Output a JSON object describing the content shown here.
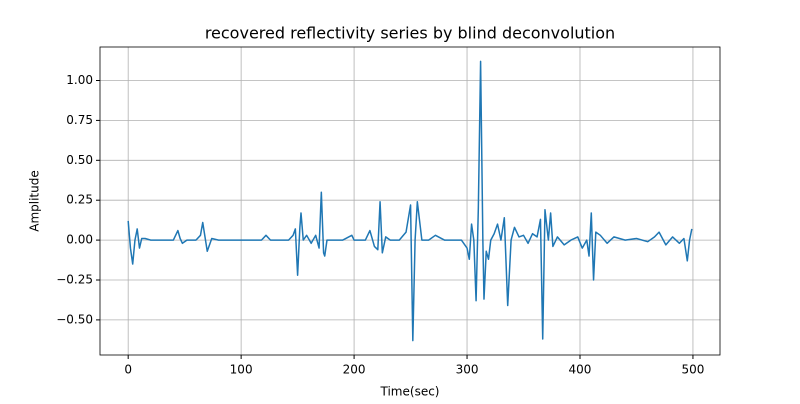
{
  "chart_data": {
    "type": "line",
    "title": "recovered reflectivity series by blind deconvolution",
    "xlabel": "Time(sec)",
    "ylabel": "Amplitude",
    "x": [
      0,
      2,
      4,
      6,
      8,
      10,
      12,
      15,
      20,
      30,
      40,
      44,
      46,
      48,
      52,
      60,
      64,
      66,
      68,
      70,
      74,
      80,
      100,
      118,
      122,
      126,
      135,
      142,
      146,
      148,
      150,
      152,
      153,
      155,
      158,
      162,
      166,
      169,
      171,
      173,
      174,
      176,
      180,
      190,
      198,
      200,
      204,
      210,
      214,
      218,
      221,
      223,
      225,
      228,
      232,
      240,
      246,
      250,
      252,
      254,
      256,
      260,
      266,
      272,
      280,
      290,
      295,
      300,
      302,
      304,
      306,
      308,
      310,
      312,
      314,
      315,
      317,
      319,
      321,
      324,
      327,
      330,
      333,
      336,
      339,
      342,
      346,
      350,
      354,
      358,
      362,
      365,
      367,
      369,
      372,
      374,
      376,
      380,
      386,
      392,
      398,
      402,
      406,
      408,
      410,
      412,
      414,
      418,
      424,
      430,
      440,
      450,
      460,
      466,
      470,
      476,
      482,
      488,
      492,
      495,
      497,
      499
    ],
    "series": [
      {
        "name": "reflectivity",
        "color": "#1f77b4",
        "values": [
          0.12,
          -0.05,
          -0.15,
          0.0,
          0.07,
          -0.05,
          0.01,
          0.01,
          0.0,
          0.0,
          0.0,
          0.06,
          0.01,
          -0.02,
          0.0,
          0.0,
          0.03,
          0.11,
          0.02,
          -0.07,
          0.01,
          0.0,
          0.0,
          0.0,
          0.03,
          0.0,
          0.0,
          0.0,
          0.03,
          0.07,
          -0.22,
          0.08,
          0.17,
          0.0,
          0.03,
          -0.02,
          0.03,
          -0.05,
          0.3,
          -0.08,
          -0.1,
          0.0,
          0.0,
          0.0,
          0.03,
          0.0,
          0.0,
          0.0,
          0.06,
          -0.04,
          -0.06,
          0.24,
          -0.08,
          0.02,
          0.0,
          0.0,
          0.05,
          0.22,
          -0.63,
          0.0,
          0.24,
          0.0,
          0.0,
          0.03,
          0.0,
          0.0,
          0.0,
          -0.05,
          -0.12,
          0.1,
          0.0,
          -0.38,
          0.2,
          1.12,
          0.0,
          -0.37,
          -0.07,
          -0.12,
          0.0,
          0.04,
          0.1,
          0.0,
          0.14,
          -0.41,
          0.0,
          0.08,
          0.02,
          0.03,
          -0.02,
          0.04,
          0.02,
          0.13,
          -0.62,
          0.19,
          0.0,
          0.17,
          -0.04,
          0.02,
          -0.03,
          0.0,
          0.02,
          -0.05,
          0.0,
          -0.1,
          0.17,
          -0.25,
          0.05,
          0.03,
          -0.02,
          0.02,
          0.0,
          0.01,
          -0.01,
          0.02,
          0.05,
          -0.03,
          0.02,
          -0.02,
          0.01,
          -0.13,
          0.0,
          0.07
        ]
      }
    ],
    "xlim": [
      -24.95,
      523.95
    ],
    "ylim": [
      -0.72,
      1.21
    ],
    "xticks": [
      0,
      100,
      200,
      300,
      400,
      500
    ],
    "yticks": [
      {
        "value": -0.5,
        "label": "−0.50"
      },
      {
        "value": -0.25,
        "label": "−0.25"
      },
      {
        "value": 0,
        "label": "0.00"
      },
      {
        "value": 0.25,
        "label": "0.25"
      },
      {
        "value": 0.5,
        "label": "0.50"
      },
      {
        "value": 0.75,
        "label": "0.75"
      },
      {
        "value": 1,
        "label": "1.00"
      }
    ],
    "grid": true
  }
}
